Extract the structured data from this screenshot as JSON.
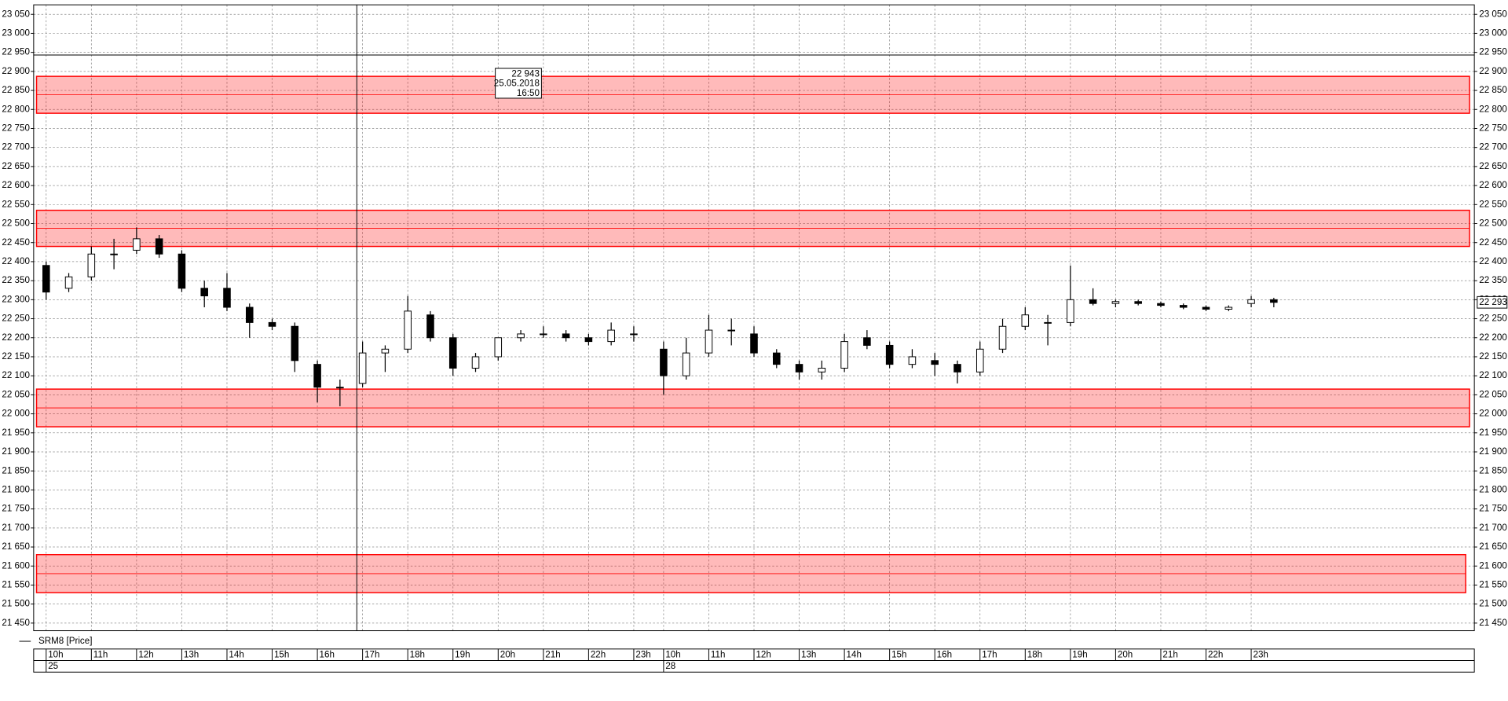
{
  "chart_data": {
    "type": "candlestick",
    "legend": "SRM8 [Price]",
    "ylim": [
      21430,
      23075
    ],
    "yticks": [
      {
        "value": 21450,
        "label": "21 450"
      },
      {
        "value": 21500,
        "label": "21 500"
      },
      {
        "value": 21550,
        "label": "21 550"
      },
      {
        "value": 21600,
        "label": "21 600"
      },
      {
        "value": 21650,
        "label": "21 650"
      },
      {
        "value": 21700,
        "label": "21 700"
      },
      {
        "value": 21750,
        "label": "21 750"
      },
      {
        "value": 21800,
        "label": "21 800"
      },
      {
        "value": 21850,
        "label": "21 850"
      },
      {
        "value": 21900,
        "label": "21 900"
      },
      {
        "value": 21950,
        "label": "21 950"
      },
      {
        "value": 22000,
        "label": "22 000"
      },
      {
        "value": 22050,
        "label": "22 050"
      },
      {
        "value": 22100,
        "label": "22 100"
      },
      {
        "value": 22150,
        "label": "22 150"
      },
      {
        "value": 22200,
        "label": "22 200"
      },
      {
        "value": 22250,
        "label": "22 250"
      },
      {
        "value": 22300,
        "label": "22 300"
      },
      {
        "value": 22350,
        "label": "22 350"
      },
      {
        "value": 22400,
        "label": "22 400"
      },
      {
        "value": 22450,
        "label": "22 450"
      },
      {
        "value": 22500,
        "label": "22 500"
      },
      {
        "value": 22550,
        "label": "22 550"
      },
      {
        "value": 22600,
        "label": "22 600"
      },
      {
        "value": 22650,
        "label": "22 650"
      },
      {
        "value": 22700,
        "label": "22 700"
      },
      {
        "value": 22750,
        "label": "22 750"
      },
      {
        "value": 22800,
        "label": "22 800"
      },
      {
        "value": 22850,
        "label": "22 850"
      },
      {
        "value": 22900,
        "label": "22 900"
      },
      {
        "value": 22950,
        "label": "22 950"
      },
      {
        "value": 23000,
        "label": "23 000"
      },
      {
        "value": 23050,
        "label": "23 050"
      }
    ],
    "grid": true,
    "color_up": "#ffffff",
    "color_down": "#000000",
    "zone_color": "#ff0000",
    "sessions": [
      {
        "day": "25",
        "categories": [
          "10h",
          null,
          "11h",
          null,
          "12h",
          null,
          "13h",
          null,
          "14h",
          null,
          "15h",
          null,
          "16h",
          null,
          "17h",
          null,
          "18h",
          null,
          "19h",
          null,
          "20h",
          null,
          "21h",
          null,
          "22h",
          null,
          "23h"
        ],
        "open": [
          22390,
          22330,
          22360,
          22420,
          22430,
          22460,
          22420,
          22330,
          22330,
          22280,
          22240,
          22230,
          22130,
          22070,
          22080,
          22160,
          22170,
          22260,
          22200,
          22120,
          22150,
          22200,
          22210,
          22210,
          22200,
          22190,
          22210
        ],
        "high": [
          22400,
          22370,
          22440,
          22460,
          22490,
          22470,
          22430,
          22350,
          22370,
          22290,
          22250,
          22240,
          22140,
          22090,
          22190,
          22180,
          22310,
          22270,
          22210,
          22160,
          22200,
          22220,
          22230,
          22220,
          22210,
          22240,
          22230
        ],
        "low": [
          22300,
          22320,
          22350,
          22380,
          22420,
          22410,
          22320,
          22280,
          22270,
          22200,
          22220,
          22110,
          22030,
          22020,
          22070,
          22110,
          22160,
          22190,
          22100,
          22110,
          22140,
          22190,
          22200,
          22190,
          22180,
          22180,
          22190
        ],
        "close": [
          22320,
          22360,
          22420,
          22420,
          22460,
          22420,
          22330,
          22310,
          22280,
          22240,
          22230,
          22140,
          22070,
          22070,
          22160,
          22170,
          22270,
          22200,
          22120,
          22150,
          22200,
          22210,
          22210,
          22200,
          22190,
          22220,
          22210
        ]
      },
      {
        "day": "28",
        "categories": [
          "10h",
          null,
          "11h",
          null,
          "12h",
          null,
          "13h",
          null,
          "14h",
          null,
          "15h",
          null,
          "16h",
          null,
          "17h",
          null,
          "18h",
          null,
          "19h",
          null,
          "20h",
          null,
          "21h",
          null,
          "22h",
          null,
          "23h",
          null
        ],
        "open": [
          22170,
          22100,
          22160,
          22220,
          22210,
          22160,
          22130,
          22110,
          22120,
          22200,
          22180,
          22130,
          22140,
          22130,
          22110,
          22170,
          22230,
          22240,
          22240,
          22300,
          22290,
          22295,
          22290,
          22285,
          22280,
          22275,
          22290,
          22300
        ],
        "high": [
          22190,
          22200,
          22260,
          22250,
          22230,
          22170,
          22140,
          22140,
          22210,
          22220,
          22190,
          22170,
          22160,
          22140,
          22190,
          22250,
          22280,
          22260,
          22390,
          22330,
          22300,
          22300,
          22295,
          22290,
          22285,
          22285,
          22310,
          22305
        ],
        "low": [
          22050,
          22090,
          22150,
          22180,
          22150,
          22120,
          22090,
          22090,
          22110,
          22170,
          22120,
          22120,
          22100,
          22080,
          22100,
          22160,
          22220,
          22180,
          22230,
          22285,
          22280,
          22285,
          22280,
          22275,
          22270,
          22270,
          22280,
          22280
        ],
        "close": [
          22100,
          22160,
          22220,
          22220,
          22160,
          22130,
          22110,
          22120,
          22190,
          22180,
          22130,
          22150,
          22130,
          22110,
          22170,
          22230,
          22260,
          22240,
          22300,
          22290,
          22295,
          22290,
          22285,
          22280,
          22275,
          22280,
          22300,
          22293
        ]
      }
    ],
    "zones": [
      {
        "low": 22790,
        "high": 22887
      },
      {
        "low": 22440,
        "high": 22535
      },
      {
        "low": 21966,
        "high": 22065
      },
      {
        "low": 21530,
        "high": 21630
      }
    ],
    "crosshair": {
      "price": {
        "value": 22943,
        "label": "22 943"
      },
      "date": "25.05.2018",
      "time": "16:50"
    },
    "last_price": {
      "value": 22293,
      "label": "22 293"
    }
  }
}
